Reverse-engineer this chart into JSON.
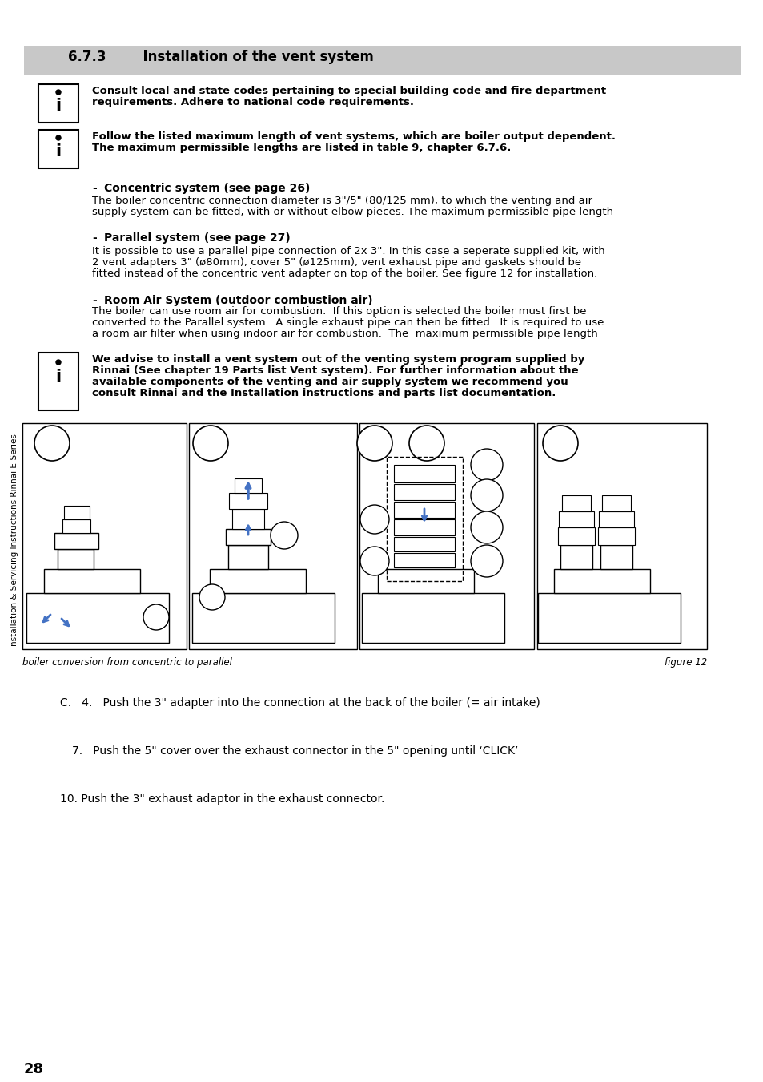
{
  "page_bg": "#ffffff",
  "header_bg": "#c8c8c8",
  "header_text": "6.7.3        Installation of the vent system",
  "header_fontsize": 12,
  "left_sidebar_text": "Installation & Servicing Instructions Rinnai E-Series",
  "page_number": "28",
  "info_box1_text1": "Consult local and state codes pertaining to special building code and fire department",
  "info_box1_text2": "requirements. Adhere to national code requirements.",
  "info_box2_text1": "Follow the listed maximum length of vent systems, which are boiler output dependent.",
  "info_box2_text2": "The maximum permissible lengths are listed in table 9, chapter 6.7.6.",
  "bullet1_title": "Concentric system (see page 26)",
  "bullet1_body1": "The boiler concentric connection diameter is 3\"/5\" (80/125 mm), to which the venting and air",
  "bullet1_body2": "supply system can be fitted, with or without elbow pieces. The maximum permissible pipe length",
  "bullet2_title": "Parallel system (see page 27)",
  "bullet2_body1": "It is possible to use a parallel pipe connection of 2x 3\". In this case a seperate supplied kit, with",
  "bullet2_body2": "2 vent adapters 3\" (ø80mm), cover 5\" (ø125mm), vent exhaust pipe and gaskets should be",
  "bullet2_body3": "fitted instead of the concentric vent adapter on top of the boiler. See figure 12 for installation.",
  "bullet3_title": "Room Air System (outdoor combustion air)",
  "bullet3_body1": "The boiler can use room air for combustion.  If this option is selected the boiler must first be",
  "bullet3_body2": "converted to the Parallel system.  A single exhaust pipe can then be fitted.  It is required to use",
  "bullet3_body3": "a room air filter when using indoor air for combustion.  The  maximum permissible pipe length",
  "info_box3_text1": "We advise to install a vent system out of the venting system program supplied by",
  "info_box3_text2": "Rinnai (See chapter 19 Parts list Vent system). For further information about the",
  "info_box3_text3": "available components of the venting and air supply system we recommend you",
  "info_box3_text4": "consult Rinnai and the Installation instructions and parts list documentation.",
  "figure_caption": "boiler conversion from concentric to parallel",
  "figure_label": "figure 12",
  "bottom1": "C.   4.   Push the 3\" adapter into the connection at the back of the boiler (= air intake)",
  "bottom2": "7.   Push the 5\" cover over the exhaust connector in the 5\" opening until ‘CLICK’",
  "bottom3": "10. Push the 3\" exhaust adaptor in the exhaust connector.",
  "arrow_color": "#4472C4"
}
